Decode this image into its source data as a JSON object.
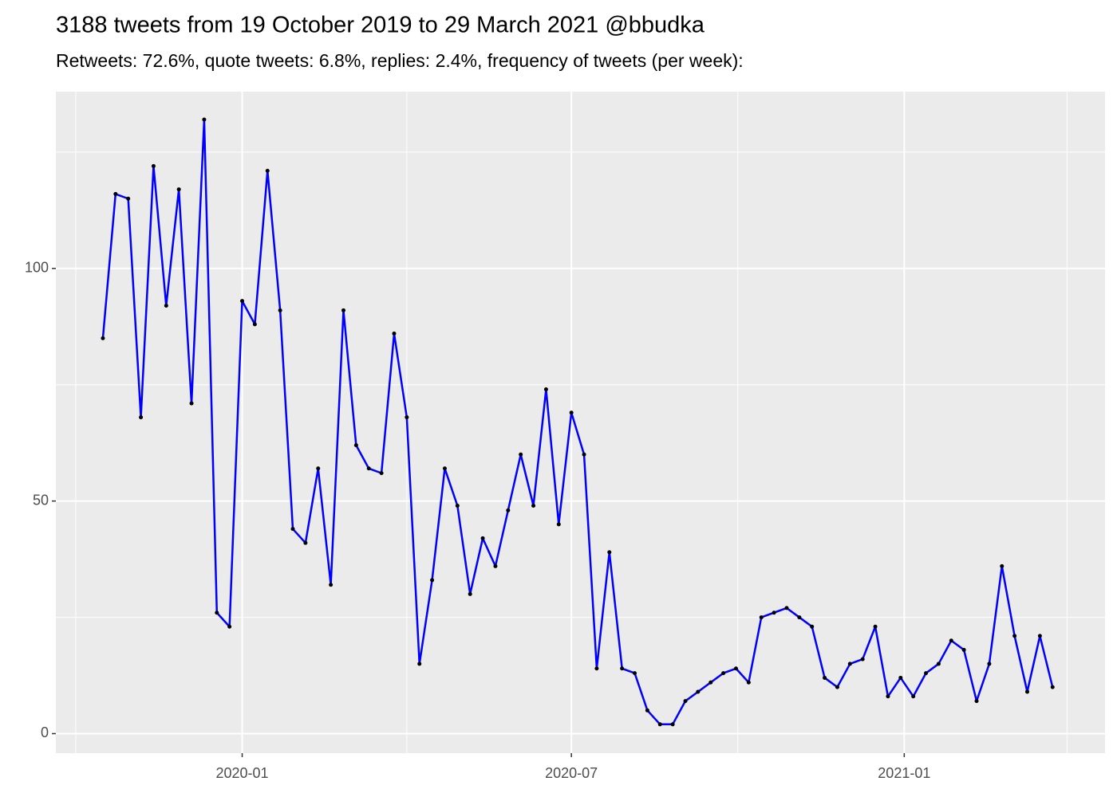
{
  "chart_data": {
    "type": "line",
    "title": "3188 tweets from 19 October 2019 to 29 March 2021 @bbudka",
    "subtitle": "Retweets: 72.6%, quote tweets: 6.8%, replies: 2.4%, frequency of tweets (per week):",
    "x": [
      "2019-10-16",
      "2019-10-23",
      "2019-10-30",
      "2019-11-06",
      "2019-11-13",
      "2019-11-20",
      "2019-11-27",
      "2019-12-04",
      "2019-12-11",
      "2019-12-18",
      "2019-12-25",
      "2020-01-01",
      "2020-01-08",
      "2020-01-15",
      "2020-01-22",
      "2020-01-29",
      "2020-02-05",
      "2020-02-12",
      "2020-02-19",
      "2020-02-26",
      "2020-03-04",
      "2020-03-11",
      "2020-03-18",
      "2020-03-25",
      "2020-04-01",
      "2020-04-08",
      "2020-04-15",
      "2020-04-22",
      "2020-04-29",
      "2020-05-06",
      "2020-05-13",
      "2020-05-20",
      "2020-05-27",
      "2020-06-03",
      "2020-06-10",
      "2020-06-17",
      "2020-06-24",
      "2020-07-01",
      "2020-07-08",
      "2020-07-15",
      "2020-07-22",
      "2020-07-29",
      "2020-08-05",
      "2020-08-12",
      "2020-08-19",
      "2020-08-26",
      "2020-09-02",
      "2020-09-09",
      "2020-09-16",
      "2020-09-23",
      "2020-09-30",
      "2020-10-07",
      "2020-10-14",
      "2020-10-21",
      "2020-10-28",
      "2020-11-04",
      "2020-11-11",
      "2020-11-18",
      "2020-11-25",
      "2020-12-02",
      "2020-12-09",
      "2020-12-16",
      "2020-12-23",
      "2020-12-30",
      "2021-01-06",
      "2021-01-13",
      "2021-01-20",
      "2021-01-27",
      "2021-02-03",
      "2021-02-10",
      "2021-02-17",
      "2021-02-24",
      "2021-03-03",
      "2021-03-10",
      "2021-03-17",
      "2021-03-24"
    ],
    "series": [
      {
        "color": "#0000ff",
        "point_color": "#000000",
        "values": [
          85,
          116,
          115,
          68,
          122,
          92,
          117,
          71,
          132,
          26,
          23,
          93,
          88,
          121,
          91,
          44,
          41,
          57,
          32,
          91,
          62,
          57,
          56,
          86,
          68,
          15,
          33,
          57,
          49,
          30,
          42,
          36,
          48,
          60,
          49,
          74,
          45,
          69,
          60,
          14,
          39,
          14,
          13,
          5,
          2,
          2,
          7,
          9,
          11,
          13,
          14,
          11,
          25,
          26,
          27,
          25,
          23,
          12,
          10,
          15,
          16,
          23,
          8,
          12,
          8,
          13,
          15,
          20,
          18,
          7,
          15,
          36,
          21,
          9,
          21,
          10
        ]
      }
    ],
    "xlim": [
      "2019-09-20",
      "2021-04-22"
    ],
    "xticks": [
      {
        "value": "2020-01-01",
        "label": "2020-01"
      },
      {
        "value": "2020-07-01",
        "label": "2020-07"
      },
      {
        "value": "2021-01-01",
        "label": "2021-01"
      }
    ],
    "x_minor_ticks": [
      "2019-10-01",
      "2020-04-01",
      "2020-10-01",
      "2021-04-01"
    ],
    "ylim": [
      -4.2,
      138
    ],
    "yticks": [
      0,
      50,
      100
    ],
    "y_minor_ticks": [
      25,
      75,
      125
    ],
    "grid": true
  }
}
